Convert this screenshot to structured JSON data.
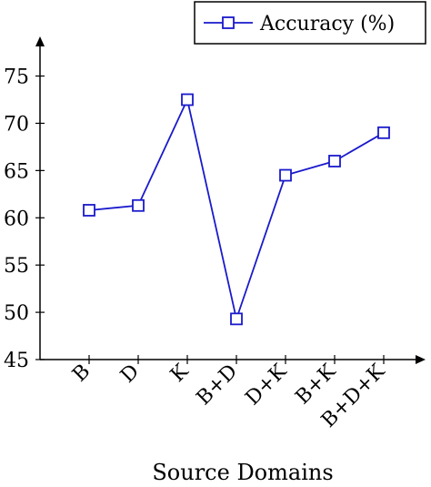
{
  "chart_data": {
    "type": "line",
    "categories": [
      "B",
      "D",
      "K",
      "B+D",
      "D+K",
      "B+K",
      "B+D+K"
    ],
    "series": [
      {
        "name": "Accuracy (%)",
        "values": [
          60.8,
          61.3,
          72.5,
          49.3,
          64.5,
          66.0,
          69.0
        ],
        "color": "#1a1acc",
        "marker": "square"
      }
    ],
    "xlabel": "Source Domains",
    "ylabel": "",
    "ylim": [
      45,
      79
    ],
    "yticks": [
      45,
      50,
      55,
      60,
      65,
      70,
      75
    ],
    "grid": false,
    "legend_position": "top-right"
  }
}
